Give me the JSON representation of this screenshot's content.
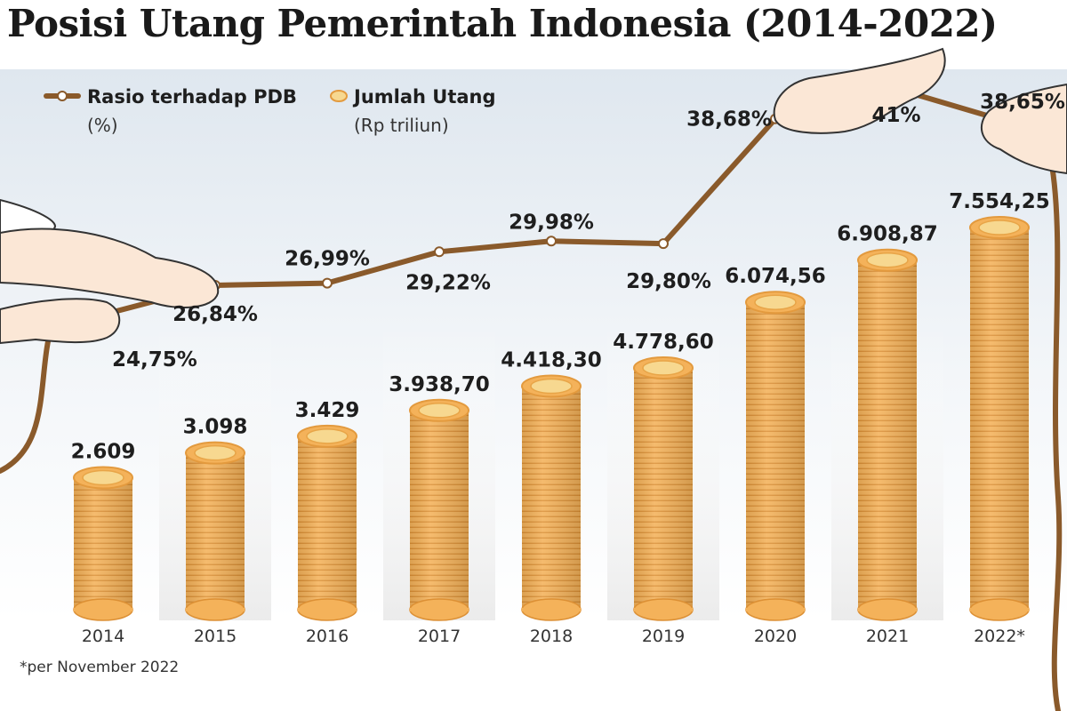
{
  "title": "Posisi Utang Pemerintah Indonesia (2014-2022)",
  "footnote": "*per November 2022",
  "colors": {
    "line": "#8a5a2b",
    "coin": "#f4b25a",
    "coin_edge": "#e39a3e",
    "coin_top": "#f7d890",
    "background_band": "#e8eef4",
    "skin": "#fbe7d6"
  },
  "legend": {
    "line_label": "Rasio terhadap PDB",
    "line_unit": "(%)",
    "bar_label": "Jumlah Utang",
    "bar_unit": "(Rp triliun)"
  },
  "chart_data": {
    "type": "bar",
    "categories": [
      "2014",
      "2015",
      "2016",
      "2017",
      "2018",
      "2019",
      "2020",
      "2021",
      "2022*"
    ],
    "series": [
      {
        "name": "Jumlah Utang",
        "unit": "(Rp triliun)",
        "values": [
          2609,
          3098,
          3429,
          3938.7,
          4418.3,
          4778.6,
          6074.56,
          6908.87,
          7554.25
        ],
        "labels": [
          "2.609",
          "3.098",
          "3.429",
          "3.938,70",
          "4.418,30",
          "4.778,60",
          "6.074,56",
          "6.908,87",
          "7.554,25"
        ]
      },
      {
        "name": "Rasio terhadap PDB",
        "unit": "(%)",
        "type": "line",
        "values": [
          24.75,
          26.84,
          26.99,
          29.22,
          29.98,
          29.8,
          38.68,
          41,
          38.65
        ],
        "labels": [
          "24,75%",
          "26,84%",
          "26,99%",
          "29,22%",
          "29,98%",
          "29,80%",
          "38,68%",
          "41%",
          "38,65%"
        ]
      }
    ],
    "legend_position": "top-left",
    "grid": false
  }
}
